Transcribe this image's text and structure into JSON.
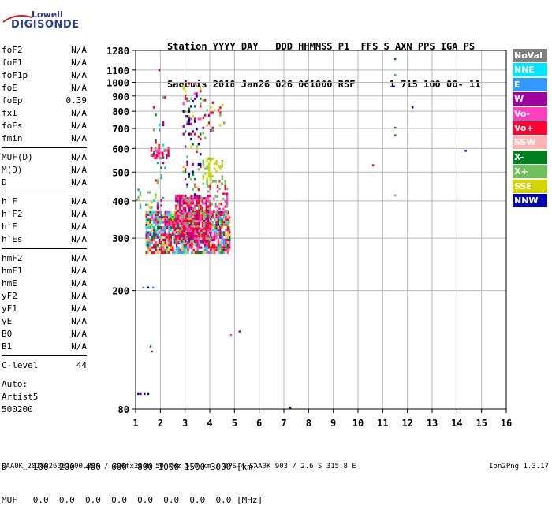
{
  "logo": {
    "top": "Lowell",
    "main": "DIGISONDE"
  },
  "header": {
    "line1": "Station YYYY DAY   DDD HHMMSS P1  FFS S AXN PPS IGA PS",
    "line2": "SaoLuis 2018 Jan26 026 061000 RSF      1 715 100 00- 11"
  },
  "params": [
    {
      "name": "foF2",
      "value": "N/A"
    },
    {
      "name": "foF1",
      "value": "N/A"
    },
    {
      "name": "foF1p",
      "value": "N/A"
    },
    {
      "name": "foE",
      "value": "N/A"
    },
    {
      "name": "foEp",
      "value": "0.39"
    },
    {
      "name": "fxI",
      "value": "N/A"
    },
    {
      "name": "foEs",
      "value": "N/A"
    },
    {
      "name": "fmin",
      "value": "N/A"
    },
    {
      "name": "MUF(D)",
      "value": "N/A"
    },
    {
      "name": "M(D)",
      "value": "N/A"
    },
    {
      "name": "D",
      "value": "N/A"
    },
    {
      "name": "h`F",
      "value": "N/A"
    },
    {
      "name": "h`F2",
      "value": "N/A"
    },
    {
      "name": "h`E",
      "value": "N/A"
    },
    {
      "name": "h`Es",
      "value": "N/A"
    },
    {
      "name": "hmF2",
      "value": "N/A"
    },
    {
      "name": "hmF1",
      "value": "N/A"
    },
    {
      "name": "hmE",
      "value": "N/A"
    },
    {
      "name": "yF2",
      "value": "N/A"
    },
    {
      "name": "yF1",
      "value": "N/A"
    },
    {
      "name": "yE",
      "value": "N/A"
    },
    {
      "name": "B0",
      "value": "N/A"
    },
    {
      "name": "B1",
      "value": "N/A"
    },
    {
      "name": "C-level",
      "value": "44"
    }
  ],
  "auto": {
    "line1": "Auto:",
    "line2": "Artist5",
    "line3": "500200"
  },
  "legend": [
    {
      "label": "NoVal",
      "color": "#7f7f7f"
    },
    {
      "label": "NNE",
      "color": "#00e5ff"
    },
    {
      "label": "E",
      "color": "#3399ff"
    },
    {
      "label": "W",
      "color": "#a0009f"
    },
    {
      "label": "Vo-",
      "color": "#ff3fbf"
    },
    {
      "label": "Vo+",
      "color": "#ff0030"
    },
    {
      "label": "SSW",
      "color": "#ffb3b3"
    },
    {
      "label": "X-",
      "color": "#00801f"
    },
    {
      "label": "X+",
      "color": "#6fbf5f"
    },
    {
      "label": "SSE",
      "color": "#d4d400"
    },
    {
      "label": "NNW",
      "color": "#0000b3"
    }
  ],
  "muf": {
    "line1": "D     100  200  400  600  800 1000 1500 3000 [km]",
    "line2": "MUF   0.0  0.0  0.0  0.0  0.0  0.0  0.0  0.0 [MHz]"
  },
  "footer": {
    "left": "SAA0K_2018026061000.RSF / 300fx256h 50 kHz 5.0 km / DPS-4 SAA0K 903 / 2.6 S 315.8 E",
    "right": "Ion2Png 1.3.17"
  },
  "chart_data": {
    "type": "scatter",
    "xlim": [
      1,
      16
    ],
    "ylim": [
      80,
      1280
    ],
    "x_ticks": [
      1,
      2,
      3,
      4,
      5,
      6,
      7,
      8,
      9,
      10,
      11,
      12,
      13,
      14,
      15,
      16
    ],
    "y_ticks": [
      80,
      200,
      300,
      400,
      500,
      600,
      700,
      800,
      900,
      1000,
      1100,
      1280
    ],
    "y_scale": "log",
    "grid": true,
    "isolated_points": [
      {
        "x": 11.5,
        "y": 1200,
        "color": "#00801f"
      },
      {
        "x": 11.5,
        "y": 1060,
        "color": "#3399ff"
      },
      {
        "x": 11.45,
        "y": 970,
        "color": "#0000b3"
      },
      {
        "x": 12.2,
        "y": 825,
        "color": "#0000b3"
      },
      {
        "x": 11.5,
        "y": 705,
        "color": "#00801f"
      },
      {
        "x": 11.5,
        "y": 665,
        "color": "#00801f"
      },
      {
        "x": 14.35,
        "y": 590,
        "color": "#0000b3"
      },
      {
        "x": 10.6,
        "y": 528,
        "color": "#ff0030"
      },
      {
        "x": 11.5,
        "y": 418,
        "color": "#6fbf5f"
      },
      {
        "x": 4.85,
        "y": 142,
        "color": "#ff3fbf"
      },
      {
        "x": 5.2,
        "y": 146,
        "color": "#a0009f"
      },
      {
        "x": 7.25,
        "y": 81,
        "color": "#0000b3"
      },
      {
        "x": 1.95,
        "y": 1100,
        "color": "#a0009f"
      },
      {
        "x": 1.3,
        "y": 205,
        "color": "#3399ff"
      },
      {
        "x": 1.7,
        "y": 205,
        "color": "#3399ff"
      },
      {
        "x": 1.5,
        "y": 205,
        "color": "#0000b3"
      },
      {
        "x": 1.1,
        "y": 90,
        "color": "#0000b3"
      },
      {
        "x": 1.2,
        "y": 90,
        "color": "#a0009f"
      },
      {
        "x": 1.35,
        "y": 90,
        "color": "#0000b3"
      },
      {
        "x": 1.5,
        "y": 90,
        "color": "#0000b3"
      },
      {
        "x": 1.6,
        "y": 130,
        "color": "#00801f"
      },
      {
        "x": 1.65,
        "y": 125,
        "color": "#a0009f"
      }
    ],
    "clusters": [
      {
        "xmin": 1.4,
        "xmax": 4.8,
        "ymin": 270,
        "ymax": 370,
        "density": 0.85,
        "colors": [
          "#ff0030",
          "#ff0030",
          "#ff3fbf",
          "#6fbf5f",
          "#d4d400",
          "#a0009f",
          "#00801f",
          "#3399ff",
          "#00e5ff",
          "#ffb3b3"
        ]
      },
      {
        "xmin": 2.6,
        "xmax": 4.0,
        "ymin": 290,
        "ymax": 420,
        "density": 0.8,
        "colors": [
          "#ff0030",
          "#ff3fbf",
          "#ff0030",
          "#a0009f",
          "#6fbf5f"
        ]
      },
      {
        "xmin": 2.9,
        "xmax": 3.6,
        "ymin": 420,
        "ymax": 1000,
        "density": 0.22,
        "colors": [
          "#ff0030",
          "#ff3fbf",
          "#a0009f",
          "#d4d400",
          "#6fbf5f",
          "#00801f",
          "#0000b3"
        ]
      },
      {
        "xmin": 3.7,
        "xmax": 4.5,
        "ymin": 460,
        "ymax": 560,
        "density": 0.45,
        "colors": [
          "#d4d400",
          "#d4d400",
          "#d4d400",
          "#6fbf5f"
        ]
      },
      {
        "xmin": 3.7,
        "xmax": 4.6,
        "ymin": 650,
        "ymax": 880,
        "density": 0.15,
        "colors": [
          "#d4d400",
          "#6fbf5f",
          "#ff0030",
          "#a0009f"
        ]
      },
      {
        "xmin": 1.6,
        "xmax": 2.4,
        "ymin": 560,
        "ymax": 620,
        "density": 0.35,
        "colors": [
          "#ff0030",
          "#a0009f",
          "#ff3fbf"
        ]
      },
      {
        "xmin": 1.7,
        "xmax": 2.2,
        "ymin": 380,
        "ymax": 900,
        "density": 0.12,
        "colors": [
          "#ff0030",
          "#a0009f",
          "#6fbf5f",
          "#00801f",
          "#3399ff",
          "#00e5ff"
        ]
      },
      {
        "xmin": 1.0,
        "xmax": 1.8,
        "ymin": 380,
        "ymax": 440,
        "density": 0.2,
        "colors": [
          "#d4d400",
          "#6fbf5f",
          "#3399ff"
        ]
      },
      {
        "xmin": 3.9,
        "xmax": 4.7,
        "ymin": 370,
        "ymax": 470,
        "density": 0.3,
        "colors": [
          "#ff0030",
          "#ff3fbf",
          "#6fbf5f"
        ]
      }
    ]
  }
}
